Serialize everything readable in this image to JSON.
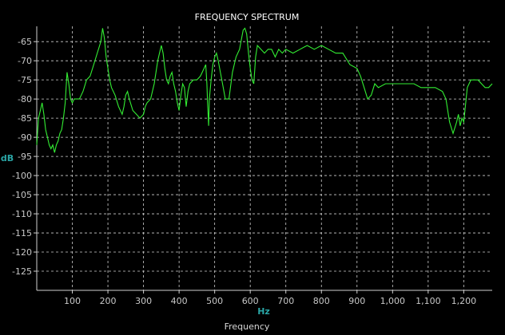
{
  "chart_data": {
    "type": "line",
    "title": "FREQUENCY SPECTRUM",
    "xlabel": "Frequency",
    "x_unit": "Hz",
    "y_unit": "dB",
    "xlim": [
      0,
      1280
    ],
    "ylim": [
      -130,
      -61
    ],
    "x_ticks": [
      100,
      200,
      300,
      400,
      500,
      600,
      700,
      800,
      900,
      1000,
      1100,
      1200
    ],
    "x_tick_labels": [
      "100",
      "200",
      "300",
      "400",
      "500",
      "600",
      "700",
      "800",
      "900",
      "1,000",
      "1,100",
      "1,200"
    ],
    "y_ticks": [
      -65,
      -70,
      -75,
      -80,
      -85,
      -90,
      -95,
      -100,
      -105,
      -110,
      -115,
      -120,
      -125
    ],
    "grid": true,
    "colors": {
      "background": "#000000",
      "line": "#33ee33",
      "grid": "#cfcfcf",
      "axis": "#cfcfcf",
      "unit": "#2aa6a6"
    },
    "series": [
      {
        "x": [
          0,
          5,
          10,
          15,
          20,
          25,
          30,
          35,
          40,
          45,
          50,
          55,
          60,
          65,
          70,
          75,
          80,
          85,
          90,
          95,
          100,
          105,
          110,
          120,
          130,
          140,
          150,
          160,
          170,
          180,
          185,
          190,
          195,
          200,
          205,
          210,
          220,
          230,
          240,
          245,
          250,
          255,
          260,
          270,
          280,
          290,
          300,
          305,
          310,
          320,
          330,
          340,
          345,
          350,
          355,
          360,
          365,
          370,
          375,
          380,
          385,
          390,
          395,
          400,
          405,
          410,
          415,
          420,
          425,
          430,
          440,
          450,
          460,
          465,
          470,
          475,
          478,
          480,
          483,
          485,
          490,
          495,
          500,
          505,
          510,
          520,
          530,
          540,
          550,
          560,
          570,
          580,
          585,
          590,
          595,
          600,
          605,
          610,
          615,
          620,
          630,
          640,
          650,
          660,
          670,
          680,
          690,
          700,
          720,
          740,
          760,
          780,
          800,
          820,
          840,
          860,
          880,
          900,
          910,
          920,
          930,
          940,
          950,
          960,
          980,
          1000,
          1020,
          1040,
          1060,
          1080,
          1100,
          1120,
          1140,
          1150,
          1160,
          1170,
          1180,
          1185,
          1190,
          1195,
          1200,
          1210,
          1220,
          1240,
          1250,
          1260,
          1270,
          1280
        ],
        "values": [
          -92,
          -85,
          -83,
          -81,
          -84,
          -88,
          -90,
          -92,
          -93,
          -92,
          -94,
          -92,
          -91,
          -89,
          -88,
          -85,
          -81,
          -73,
          -76,
          -80,
          -81,
          -80,
          -80,
          -80,
          -78,
          -75,
          -74,
          -71,
          -68,
          -65,
          -61.5,
          -64,
          -69,
          -72,
          -75,
          -77,
          -79,
          -82,
          -84,
          -82,
          -79,
          -78,
          -80,
          -83,
          -84,
          -85,
          -84,
          -82,
          -81,
          -80,
          -76,
          -70,
          -68,
          -66,
          -68,
          -72,
          -75,
          -76,
          -74,
          -73,
          -76,
          -78,
          -81,
          -83,
          -79,
          -76,
          -77,
          -82,
          -78,
          -76,
          -75,
          -75,
          -74,
          -73,
          -72,
          -71,
          -76,
          -81,
          -87,
          -80,
          -75,
          -71,
          -69,
          -68,
          -70,
          -75,
          -80,
          -80,
          -73,
          -69,
          -67,
          -62,
          -61.5,
          -63,
          -68,
          -72,
          -75,
          -76,
          -69,
          -66,
          -67,
          -68,
          -67,
          -67,
          -69,
          -67,
          -68,
          -67,
          -68,
          -67,
          -66,
          -67,
          -66,
          -67,
          -68,
          -68,
          -71,
          -72,
          -74,
          -77,
          -80,
          -79,
          -76,
          -77,
          -76,
          -76,
          -76,
          -76,
          -76,
          -77,
          -77,
          -77,
          -78,
          -80,
          -86,
          -89,
          -86,
          -84,
          -87,
          -85,
          -86,
          -77,
          -75,
          -75,
          -76,
          -77,
          -77,
          -76
        ]
      }
    ]
  }
}
